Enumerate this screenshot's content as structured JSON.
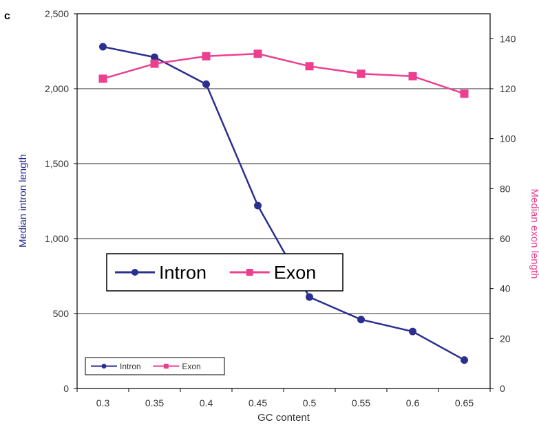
{
  "chart_data": {
    "type": "line",
    "panel_label": "c",
    "xlabel": "GC content",
    "ylabel_left": "Median intron length",
    "ylabel_right": "Median exon length",
    "categories": [
      "0.3",
      "0.35",
      "0.4",
      "0.45",
      "0.5",
      "0.55",
      "0.6",
      "0.65"
    ],
    "y_left": {
      "ylim": [
        0,
        2500
      ],
      "ticks": [
        0,
        500,
        1000,
        1500,
        2000,
        2500
      ],
      "tick_labels": [
        "0",
        "500",
        "1,000",
        "1,500",
        "2,000",
        "2,500"
      ]
    },
    "y_right": {
      "ylim": [
        0,
        150
      ],
      "ticks": [
        0,
        20,
        40,
        60,
        80,
        100,
        120,
        140
      ],
      "tick_labels": [
        "0",
        "20",
        "40",
        "60",
        "80",
        "100",
        "120",
        "140"
      ]
    },
    "series": [
      {
        "name": "Intron",
        "axis": "left",
        "color": "#2b2f8f",
        "marker": "circle",
        "values": [
          2280,
          2210,
          2030,
          1220,
          610,
          460,
          380,
          190
        ]
      },
      {
        "name": "Exon",
        "axis": "right",
        "color": "#ec3f8f",
        "marker": "square",
        "values": [
          124,
          130,
          133,
          134,
          129,
          126,
          125,
          118
        ]
      }
    ],
    "grid": "horizontal",
    "legend": [
      {
        "position": "center-left",
        "size": "large"
      },
      {
        "position": "bottom-left",
        "size": "small"
      }
    ],
    "colors": {
      "left_axis_label": "#2b2f8f",
      "right_axis_label": "#ec3f8f",
      "grid": "#555555"
    }
  }
}
